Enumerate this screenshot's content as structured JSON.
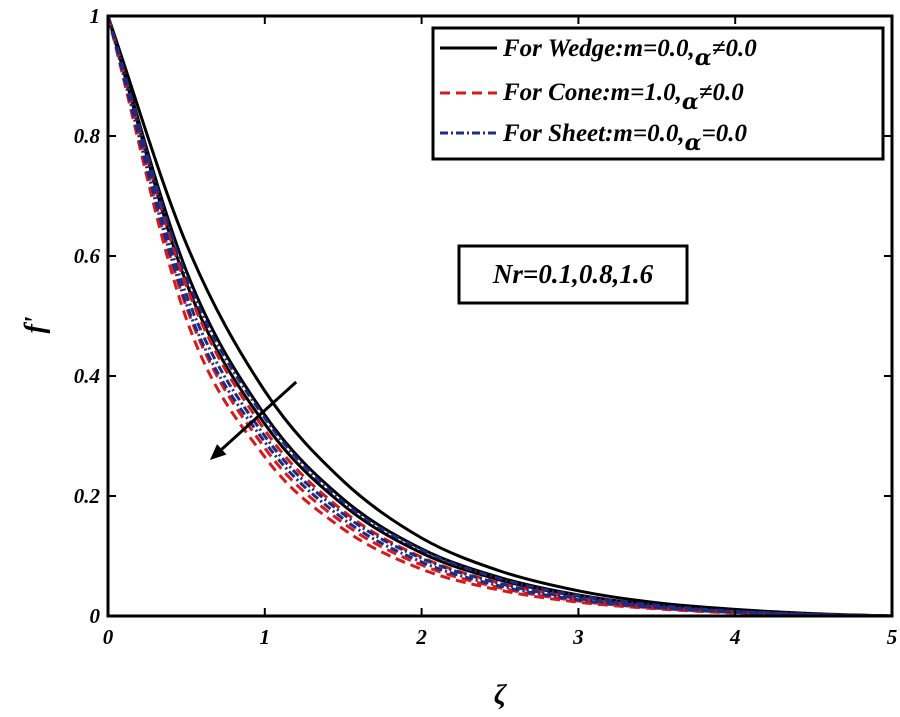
{
  "chart_data": {
    "type": "line",
    "xlabel": "ζ",
    "ylabel": "f'",
    "xlim": [
      0,
      5
    ],
    "ylim": [
      0,
      1
    ],
    "x_ticks": [
      0,
      1,
      2,
      3,
      4,
      5
    ],
    "y_ticks": [
      0,
      0.2,
      0.4,
      0.6,
      0.8,
      1
    ],
    "x_tick_labels": [
      "0",
      "1",
      "2",
      "3",
      "4",
      "5"
    ],
    "y_tick_labels": [
      "0",
      "0.2",
      "0.4",
      "0.6",
      "0.8",
      "1"
    ],
    "grid": false,
    "legend_position": "top-right",
    "legend": [
      {
        "prefix": "For Wedge:m=0.0,",
        "alpha": "α",
        "suffix": "≠0.0",
        "color": "#000000",
        "style": "solid"
      },
      {
        "prefix": "For Cone:m=1.0,",
        "alpha": "α",
        "suffix": "≠0.0",
        "color": "#d7191c",
        "style": "dashed"
      },
      {
        "prefix": "For Sheet:m=0.0,",
        "alpha": "α",
        "suffix": "=0.0",
        "color": "#1f2a80",
        "style": "dashdot"
      }
    ],
    "annotation": {
      "text": "Nr=0.1,0.8,1.6",
      "arrow_from": [
        1.2,
        0.39
      ],
      "arrow_to": [
        0.65,
        0.26
      ]
    },
    "series": [
      {
        "name": "Wedge Nr=0.1",
        "group": "wedge",
        "color": "#000000",
        "style": "solid",
        "x": [
          0,
          0.5,
          1,
          1.5,
          2,
          2.5,
          3,
          3.5,
          4,
          4.5,
          5
        ],
        "y": [
          1,
          0.62,
          0.375,
          0.225,
          0.13,
          0.075,
          0.042,
          0.022,
          0.011,
          0.004,
          0
        ]
      },
      {
        "name": "Wedge Nr=0.8",
        "group": "wedge",
        "color": "#000000",
        "style": "solid",
        "x": [
          0,
          0.5,
          1,
          1.5,
          2,
          2.5,
          3,
          3.5,
          4,
          4.5,
          5
        ],
        "y": [
          1,
          0.575,
          0.335,
          0.195,
          0.112,
          0.064,
          0.035,
          0.018,
          0.009,
          0.003,
          0
        ]
      },
      {
        "name": "Wedge Nr=1.6",
        "group": "wedge",
        "color": "#000000",
        "style": "solid",
        "x": [
          0,
          0.5,
          1,
          1.5,
          2,
          2.5,
          3,
          3.5,
          4,
          4.5,
          5
        ],
        "y": [
          1,
          0.555,
          0.32,
          0.185,
          0.105,
          0.06,
          0.033,
          0.017,
          0.008,
          0.003,
          0
        ]
      },
      {
        "name": "Cone Nr=0.1",
        "group": "cone",
        "color": "#d7191c",
        "style": "dashed",
        "x": [
          0,
          0.5,
          1,
          1.5,
          2,
          2.5,
          3,
          3.5,
          4,
          4.5,
          5
        ],
        "y": [
          1,
          0.55,
          0.31,
          0.175,
          0.098,
          0.055,
          0.03,
          0.015,
          0.007,
          0.002,
          0
        ]
      },
      {
        "name": "Cone Nr=0.8",
        "group": "cone",
        "color": "#d7191c",
        "style": "dashed",
        "x": [
          0,
          0.5,
          1,
          1.5,
          2,
          2.5,
          3,
          3.5,
          4,
          4.5,
          5
        ],
        "y": [
          1,
          0.515,
          0.28,
          0.155,
          0.085,
          0.047,
          0.025,
          0.013,
          0.006,
          0.002,
          0
        ]
      },
      {
        "name": "Cone Nr=1.6",
        "group": "cone",
        "color": "#d7191c",
        "style": "dashed",
        "x": [
          0,
          0.5,
          1,
          1.5,
          2,
          2.5,
          3,
          3.5,
          4,
          4.5,
          5
        ],
        "y": [
          1,
          0.495,
          0.265,
          0.145,
          0.078,
          0.043,
          0.023,
          0.012,
          0.005,
          0.002,
          0
        ]
      },
      {
        "name": "Sheet Nr=0.1",
        "group": "sheet",
        "color": "#1f2a80",
        "style": "dashdot",
        "x": [
          0,
          0.5,
          1,
          1.5,
          2,
          2.5,
          3,
          3.5,
          4,
          4.5,
          5
        ],
        "y": [
          1,
          0.565,
          0.33,
          0.19,
          0.11,
          0.062,
          0.034,
          0.018,
          0.008,
          0.003,
          0
        ]
      },
      {
        "name": "Sheet Nr=0.8",
        "group": "sheet",
        "color": "#1f2a80",
        "style": "dashdot",
        "x": [
          0,
          0.5,
          1,
          1.5,
          2,
          2.5,
          3,
          3.5,
          4,
          4.5,
          5
        ],
        "y": [
          1,
          0.535,
          0.3,
          0.17,
          0.096,
          0.054,
          0.029,
          0.015,
          0.007,
          0.002,
          0
        ]
      },
      {
        "name": "Sheet Nr=1.6",
        "group": "sheet",
        "color": "#1f2a80",
        "style": "dashdot",
        "x": [
          0,
          0.5,
          1,
          1.5,
          2,
          2.5,
          3,
          3.5,
          4,
          4.5,
          5
        ],
        "y": [
          1,
          0.52,
          0.29,
          0.162,
          0.09,
          0.05,
          0.027,
          0.014,
          0.006,
          0.002,
          0
        ]
      }
    ]
  }
}
